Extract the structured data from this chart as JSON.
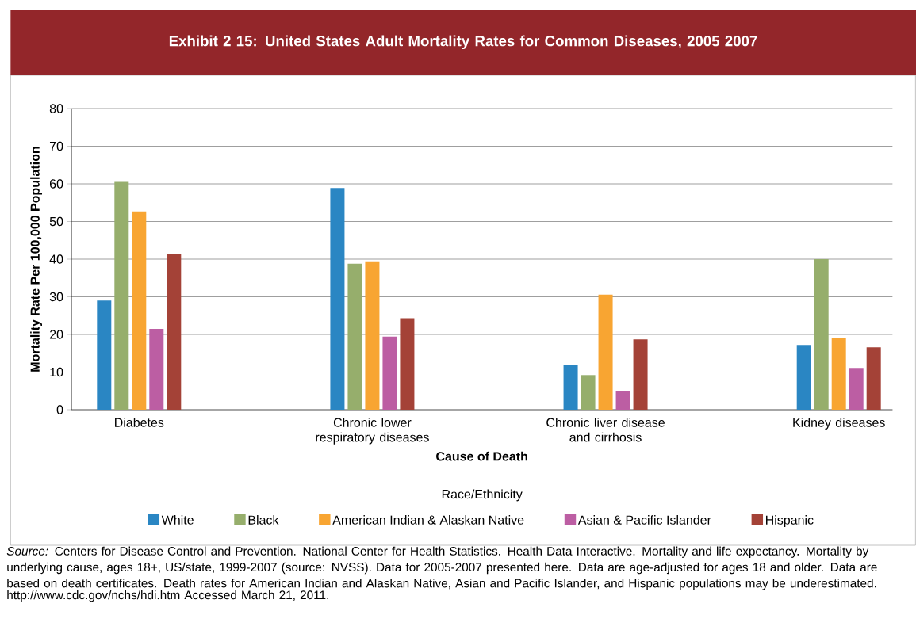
{
  "chart_data": {
    "type": "bar",
    "title": "Exhibit 2 15: United States Adult Mortality Rates for Common Diseases, 2005 2007",
    "xlabel": "Cause of Death",
    "ylabel": "Mortality Rate Per 100,000 Population",
    "legend_title": "Race/Ethnicity",
    "categories": [
      "Diabetes",
      "Chronic lower respiratory diseases",
      "Chronic liver disease and cirrhosis",
      "Kidney diseases"
    ],
    "series": [
      {
        "name": "White",
        "color": "#2a86c3",
        "values": [
          29.0,
          58.9,
          11.8,
          17.2
        ]
      },
      {
        "name": "Black",
        "color": "#96ae6c",
        "values": [
          60.5,
          38.8,
          9.2,
          40.0
        ]
      },
      {
        "name": "American Indian & Alaskan Native",
        "color": "#f8a532",
        "values": [
          52.7,
          39.4,
          30.6,
          19.1
        ]
      },
      {
        "name": "Asian & Pacific Islander",
        "color": "#bc5ea3",
        "values": [
          21.5,
          19.4,
          5.0,
          11.1
        ]
      },
      {
        "name": "Hispanic",
        "color": "#a44237",
        "values": [
          41.4,
          24.3,
          18.7,
          16.6
        ]
      }
    ],
    "ylim": [
      0,
      80
    ],
    "yticks": [
      0,
      10,
      20,
      30,
      40,
      50,
      60,
      70,
      80
    ],
    "grid": "y",
    "legend": "bottom",
    "annotations": [
      "*Source:* Centers for Disease Control and Prevention. National Center for Health Statistics. Health Data Interactive. Mortality and life expectancy. Mortality by underlying cause, ages 18+, US/state, 1999-2007 (source: NVSS). Data for 2005-2007 presented here. Data are age-adjusted for ages 18 and older. Data are based on death certificates. Death rates for American Indian and Alaskan Native, Asian and Pacific Islander, and Hispanic populations may be underestimated.",
      "http://www.cdc.gov/nchs/hdi.htm Accessed March 21, 2011."
    ]
  }
}
